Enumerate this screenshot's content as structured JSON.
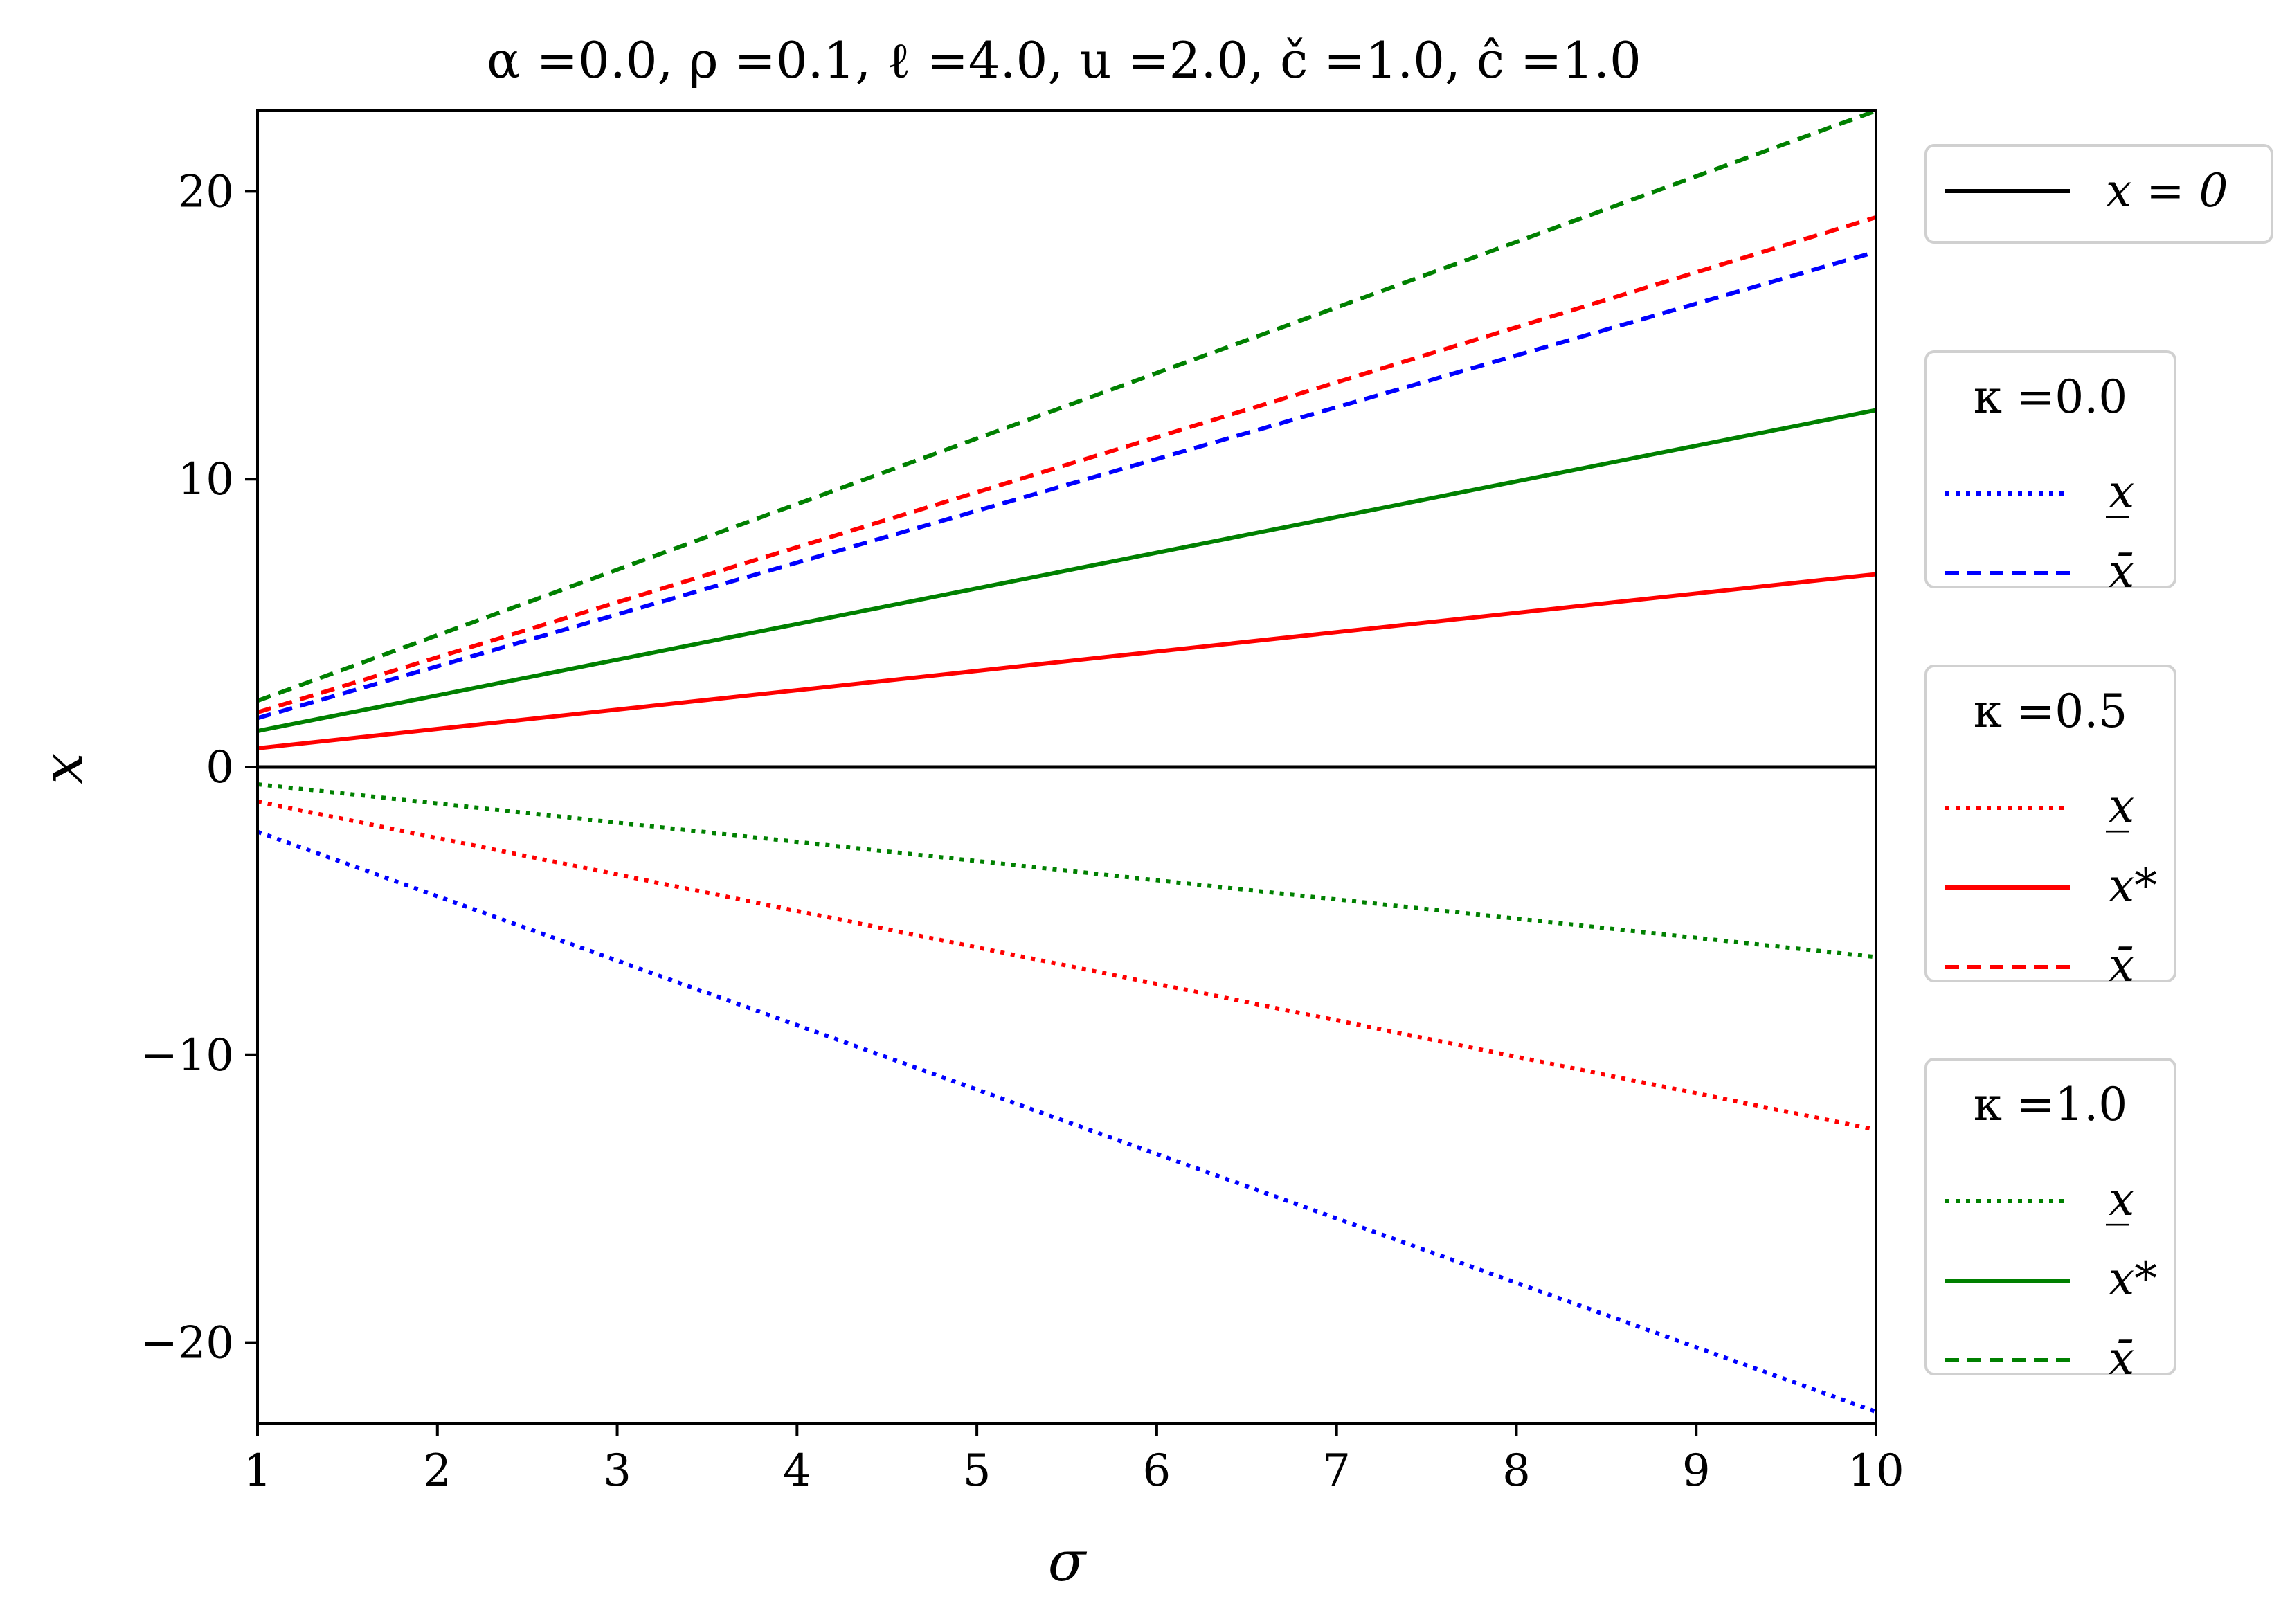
{
  "chart_data": {
    "type": "line",
    "title": "α =0.0, ρ =0.1, ℓ =4.0, u =2.0, č =1.0, ĉ =1.0",
    "xlabel": "σ",
    "ylabel": "x",
    "xlim": [
      1,
      10
    ],
    "ylim": [
      -22.8,
      22.8
    ],
    "x_ticks": [
      1,
      2,
      3,
      4,
      5,
      6,
      7,
      8,
      9,
      10
    ],
    "y_ticks": [
      -20,
      -10,
      0,
      10,
      20
    ],
    "y_tick_labels": [
      "−20",
      "−10",
      "0",
      "10",
      "20"
    ],
    "grid": false,
    "legend_placement": "outside right",
    "reference_line": {
      "label": "x = 0",
      "y": 0,
      "color": "#000000",
      "style": "solid"
    },
    "groups": [
      {
        "title": "κ =0.0",
        "color": "#0000ff",
        "series": [
          {
            "name": "x̲",
            "style": "dotted",
            "x": [
              1,
              10
            ],
            "y": [
              -2.25,
              -22.4
            ]
          },
          {
            "name": "x̄",
            "style": "dashed",
            "x": [
              1,
              10
            ],
            "y": [
              1.7,
              17.9
            ]
          }
        ]
      },
      {
        "title": "κ =0.5",
        "color": "#ff0000",
        "series": [
          {
            "name": "x̲",
            "style": "dotted",
            "x": [
              1,
              10
            ],
            "y": [
              -1.2,
              -12.6
            ]
          },
          {
            "name": "x*",
            "style": "solid",
            "x": [
              1,
              10
            ],
            "y": [
              0.65,
              6.7
            ]
          },
          {
            "name": "x̄",
            "style": "dashed",
            "x": [
              1,
              10
            ],
            "y": [
              1.9,
              19.1
            ]
          }
        ]
      },
      {
        "title": "κ =1.0",
        "color": "#008000",
        "series": [
          {
            "name": "x̲",
            "style": "dotted",
            "x": [
              1,
              10
            ],
            "y": [
              -0.6,
              -6.6
            ]
          },
          {
            "name": "x*",
            "style": "solid",
            "x": [
              1,
              10
            ],
            "y": [
              1.25,
              12.4
            ]
          },
          {
            "name": "x̄",
            "style": "dashed",
            "x": [
              1,
              10
            ],
            "y": [
              2.3,
              22.8
            ]
          }
        ]
      }
    ]
  }
}
